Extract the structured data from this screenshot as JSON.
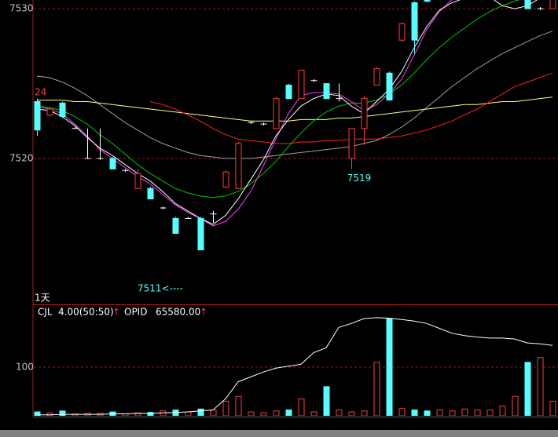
{
  "chart_data": [
    {
      "type": "candlestick",
      "ylim": [
        7510.26,
        7530.58
      ],
      "yticks": [
        7520,
        7530
      ],
      "grid": true,
      "period": "1天",
      "high_label": "24",
      "annotations": [
        {
          "text": "7519",
          "index": 25
        },
        {
          "text": "7511<----",
          "index": 12
        }
      ],
      "up_color": "#ff3c3c",
      "down_color": "#54ffff",
      "flat_color": "#ffffff",
      "open": [
        7523.8,
        7522.9,
        7523.7,
        7522,
        7520,
        7520,
        7520,
        7519.2,
        7518,
        7518,
        7516.7,
        7516,
        7516,
        7516,
        7516.3,
        7518.1,
        7518,
        7522.4,
        7522.3,
        7522,
        7524.9,
        7524,
        7525.2,
        7525,
        7524,
        7520,
        7522,
        7524.9,
        7525.7,
        7527.9,
        7530.4,
        7531,
        null,
        null,
        null,
        null,
        null,
        null,
        null,
        7531,
        7530,
        7530
      ],
      "high": [
        7524,
        7523.4,
        7523.8,
        7522.1,
        7522,
        7522,
        7520.1,
        7519.3,
        7519.3,
        7518.1,
        7516.8,
        7516.1,
        7516.1,
        7516.1,
        7516.5,
        7519.2,
        7521.1,
        7522.5,
        7522.4,
        7524.1,
        7525,
        7525.9,
        7525.3,
        7525,
        7525,
        7522,
        7524.2,
        7526.1,
        7525.8,
        7529.1,
        7530.5,
        7531,
        null,
        null,
        null,
        null,
        null,
        null,
        null,
        7531,
        7530.1,
        7531
      ],
      "low": [
        7521.5,
        7522.8,
        7522.7,
        7522,
        7520,
        7519.9,
        7519.3,
        7519.1,
        7518,
        7517.3,
        7516.6,
        7515,
        7516,
        7513.9,
        7515.7,
        7518,
        7518,
        7522.3,
        7522.2,
        7522,
        7524,
        7524,
        7525.1,
        7524,
        7523.8,
        7519.3,
        7520.9,
        7524.9,
        7523.9,
        7527.8,
        7527,
        7530.4,
        null,
        null,
        null,
        null,
        null,
        null,
        null,
        7530,
        7529.9,
        7530
      ],
      "close": [
        7521.9,
        7523.3,
        7522.8,
        7522,
        7520,
        7520,
        7519.3,
        7519.2,
        7519,
        7517.3,
        7516.7,
        7515,
        7516,
        7513.9,
        7516.3,
        7519.1,
        7521,
        7522.4,
        7522.3,
        7524,
        7524,
        7525.9,
        7525.2,
        7524,
        7524,
        7522,
        7524,
        7526,
        7523.9,
        7529,
        7527.9,
        7530.5,
        null,
        null,
        null,
        null,
        null,
        null,
        null,
        7530,
        7530,
        7531
      ],
      "series": [
        {
          "color": "#a0a0a0",
          "values": [
            7525.5,
            7525.4,
            7525.1,
            7524.7,
            7524.2,
            7523.6,
            7523.0,
            7522.4,
            7521.9,
            7521.4,
            7521.0,
            7520.7,
            7520.4,
            7520.2,
            7520.1,
            7520.0,
            7520.0,
            7520.0,
            7520.1,
            7520.2,
            7520.3,
            7520.4,
            7520.5,
            7520.6,
            7520.7,
            7520.8,
            7521.0,
            7521.2,
            7521.6,
            7522.1,
            7522.7,
            7523.4,
            7524.1,
            7524.8,
            7525.4,
            7526.0,
            7526.5,
            7527.0,
            7527.4,
            7527.8,
            7528.2,
            7528.5
          ]
        },
        {
          "color": "#ffff80",
          "values": [
            7523.9,
            7523.9,
            7523.9,
            7523.8,
            7523.8,
            7523.7,
            7523.6,
            7523.5,
            7523.4,
            7523.3,
            7523.2,
            7523.1,
            7523.0,
            7522.9,
            7522.8,
            7522.7,
            7522.6,
            7522.5,
            7522.5,
            7522.5,
            7522.5,
            7522.6,
            7522.6,
            7522.6,
            7522.7,
            7522.7,
            7522.8,
            7522.9,
            7523.0,
            7523.1,
            7523.2,
            7523.3,
            7523.4,
            7523.5,
            7523.6,
            7523.6,
            7523.7,
            7523.8,
            7523.8,
            7523.9,
            7524.0,
            7524.1
          ]
        },
        {
          "color": "#ff2020",
          "values": [
            null,
            null,
            null,
            null,
            null,
            null,
            null,
            null,
            null,
            7523.8,
            7523.6,
            7523.3,
            7522.9,
            7522.5,
            7522.0,
            7521.6,
            7521.3,
            7521.2,
            7521.1,
            7521.0,
            7521.0,
            7521.1,
            7521.1,
            7521.2,
            7521.2,
            7521.3,
            7521.3,
            7521.3,
            7521.4,
            7521.5,
            7521.7,
            7521.9,
            7522.2,
            7522.5,
            7522.9,
            7523.3,
            7523.8,
            7524.3,
            7524.8,
            7525.1,
            7525.4,
            7525.7
          ]
        },
        {
          "color": "#00c800",
          "values": [
            7523.5,
            7523.4,
            7523.2,
            7522.8,
            7522.3,
            7521.6,
            7521.0,
            7520.3,
            7519.6,
            7519.0,
            7518.5,
            7518.0,
            7517.7,
            7517.5,
            7517.4,
            7517.5,
            7517.8,
            7518.3,
            7519.0,
            7519.8,
            7520.8,
            7521.7,
            7522.5,
            7523.1,
            7523.5,
            7523.7,
            7523.7,
            7523.9,
            7524.3,
            7524.9,
            7525.7,
            7526.6,
            7527.4,
            7528.1,
            7528.7,
            7529.3,
            7529.8,
            7530.2,
            7530.5,
            7530.8,
            7531.0,
            7531.1
          ]
        },
        {
          "color": "#ff40ff",
          "values": [
            7523.5,
            7523.3,
            7523.0,
            7522.3,
            7521.5,
            7520.6,
            7520.0,
            7519.4,
            7518.8,
            7518.3,
            7517.6,
            7516.9,
            7516.4,
            7516.0,
            7515.5,
            7515.8,
            7516.6,
            7517.8,
            7519.5,
            7521.3,
            7523.0,
            7524.2,
            7524.4,
            7524.4,
            7524.3,
            7523.8,
            7523.2,
            7523.6,
            7524.3,
            7525.3,
            7526.9,
            7528.6,
            7529.8,
            7530.6,
            7531.0,
            7531.2,
            7531.2,
            7530.9,
            7530.6,
            7530.6,
            7530.8,
            7531.0
          ]
        },
        {
          "color": "#ffffff",
          "values": [
            7523.3,
            7523.2,
            7522.8,
            7522.2,
            7521.4,
            7520.7,
            7520.2,
            7519.6,
            7519.0,
            7518.5,
            7517.8,
            7517.0,
            7516.5,
            7516.0,
            7515.6,
            7516.2,
            7517.3,
            7518.6,
            7519.9,
            7521.5,
            7522.6,
            7523.5,
            7524.0,
            7524.3,
            7524.2,
            7523.5,
            7523.0,
            7523.8,
            7524.6,
            7525.8,
            7527.4,
            7528.8,
            7529.9,
            7530.4,
            7530.7,
            7530.9,
            7530.8,
            7530.2,
            7530.0,
            7530.2,
            7530.7,
            7531.0
          ]
        }
      ]
    },
    {
      "type": "bar",
      "ylim": [
        0,
        226
      ],
      "yticks": [
        100
      ],
      "grid": true,
      "indicator": "CJL",
      "indicator_value": "4.00(50:50)",
      "line_name": "OPID",
      "line_value": "65580.00",
      "arrow": "↑",
      "values": [
        8,
        6,
        10,
        4,
        5,
        5,
        8,
        4,
        6,
        7,
        10,
        12,
        8,
        14,
        12,
        30,
        40,
        8,
        6,
        10,
        12,
        35,
        8,
        60,
        12,
        8,
        10,
        110,
        200,
        15,
        12,
        10,
        12,
        10,
        14,
        12,
        12,
        20,
        40,
        110,
        120,
        30
      ],
      "series": [
        {
          "color": "#ffffff",
          "values": [
            2,
            2,
            3,
            3,
            3,
            3,
            4,
            4,
            5,
            5,
            6,
            7,
            8,
            10,
            12,
            35,
            70,
            80,
            90,
            98,
            102,
            106,
            130,
            140,
            182,
            190,
            200,
            202,
            201,
            198,
            195,
            190,
            180,
            170,
            165,
            162,
            160,
            160,
            158,
            150,
            148,
            145
          ]
        }
      ]
    }
  ]
}
